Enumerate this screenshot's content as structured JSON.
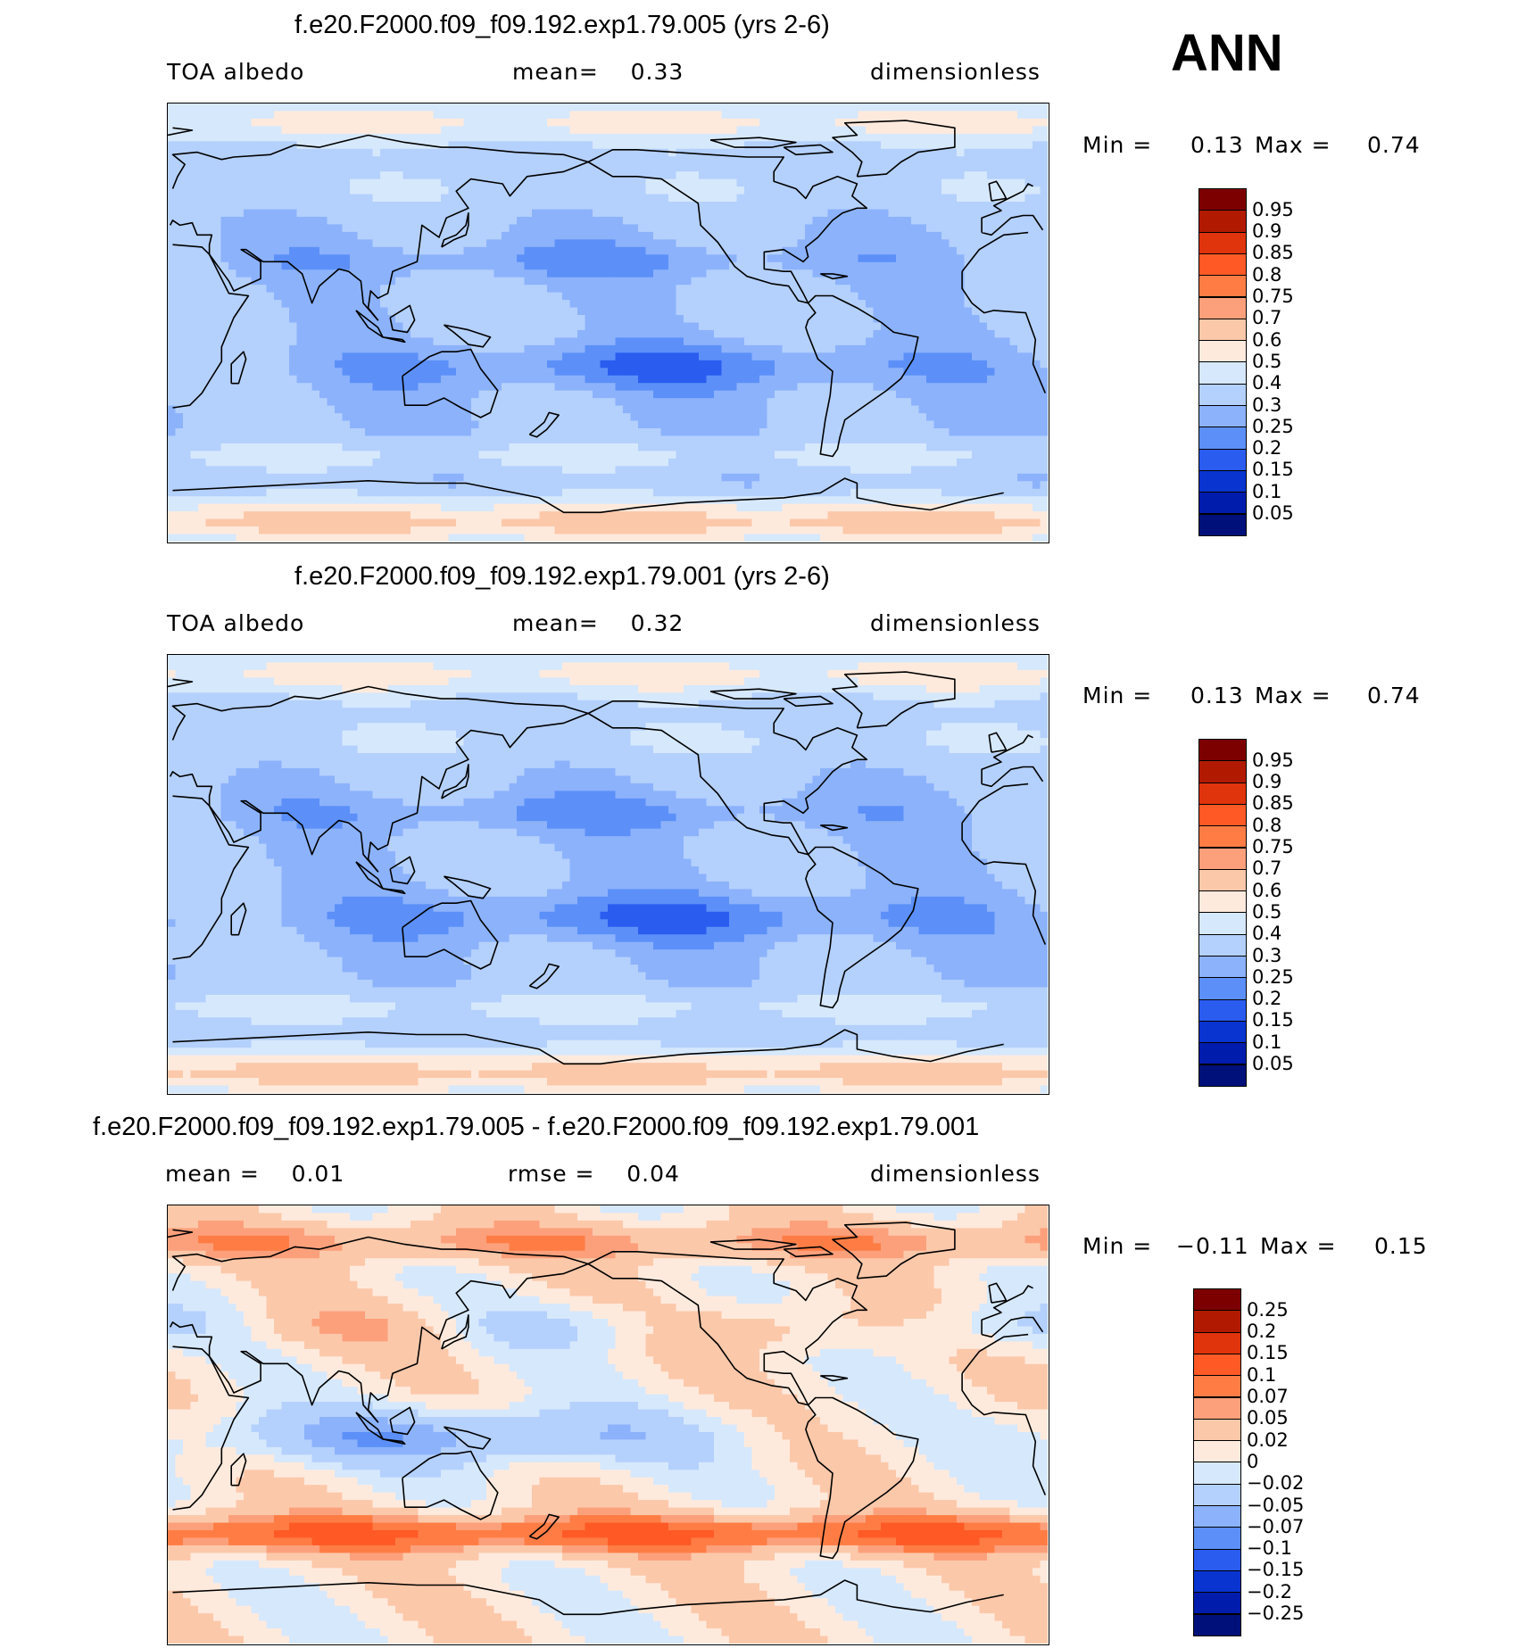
{
  "header": {
    "season": "ANN"
  },
  "panels": [
    {
      "id": "p1",
      "title": "f.e20.F2000.f09_f09.192.exp1.79.005 (yrs 2-6)",
      "left_label": "TOA albedo",
      "center_label": "mean=    0.33",
      "units": "dimensionless",
      "min_label": "Min =",
      "min_value": "0.13",
      "max_label": "Max =",
      "max_value": "0.74",
      "field": "albedo_test",
      "levels": [
        "0.95",
        "0.9",
        "0.85",
        "0.8",
        "0.75",
        "0.7",
        "0.6",
        "0.5",
        "0.4",
        "0.3",
        "0.25",
        "0.2",
        "0.15",
        "0.1",
        "0.05"
      ],
      "colors": [
        "#7d0000",
        "#b21a00",
        "#e0340c",
        "#ff5a26",
        "#ff7d45",
        "#fca07c",
        "#fcc8aa",
        "#feeadd",
        "#d6e8fc",
        "#b4d0fc",
        "#8cb2fc",
        "#5c90f8",
        "#2a5cf0",
        "#0a34d0",
        "#001cac",
        "#00107a"
      ]
    },
    {
      "id": "p2",
      "title": "f.e20.F2000.f09_f09.192.exp1.79.001 (yrs 2-6)",
      "left_label": "TOA albedo",
      "center_label": "mean=    0.32",
      "units": "dimensionless",
      "min_label": "Min =",
      "min_value": "0.13",
      "max_label": "Max =",
      "max_value": "0.74",
      "field": "albedo_ctrl",
      "levels": [
        "0.95",
        "0.9",
        "0.85",
        "0.8",
        "0.75",
        "0.7",
        "0.6",
        "0.5",
        "0.4",
        "0.3",
        "0.25",
        "0.2",
        "0.15",
        "0.1",
        "0.05"
      ],
      "colors": [
        "#7d0000",
        "#b21a00",
        "#e0340c",
        "#ff5a26",
        "#ff7d45",
        "#fca07c",
        "#fcc8aa",
        "#feeadd",
        "#d6e8fc",
        "#b4d0fc",
        "#8cb2fc",
        "#5c90f8",
        "#2a5cf0",
        "#0a34d0",
        "#001cac",
        "#00107a"
      ]
    },
    {
      "id": "p3",
      "title": "f.e20.F2000.f09_f09.192.exp1.79.005 - f.e20.F2000.f09_f09.192.exp1.79.001",
      "left_label": "mean =    0.01",
      "center_label": "rmse =    0.04",
      "units": "dimensionless",
      "min_label": "Min =",
      "min_value": "−0.11",
      "max_label": "Max =",
      "max_value": "0.15",
      "field": "difference",
      "levels": [
        "0.25",
        "0.2",
        "0.15",
        "0.1",
        "0.07",
        "0.05",
        "0.02",
        "0",
        "−0.02",
        "−0.05",
        "−0.07",
        "−0.1",
        "−0.15",
        "−0.2",
        "−0.25"
      ],
      "colors": [
        "#7d0000",
        "#b21a00",
        "#e0340c",
        "#ff5a26",
        "#ff7d45",
        "#fca07c",
        "#fcc8aa",
        "#feeadd",
        "#d6e8fc",
        "#b4d0fc",
        "#8cb2fc",
        "#5c90f8",
        "#2a5cf0",
        "#0a34d0",
        "#001cac",
        "#00107a"
      ]
    }
  ]
}
